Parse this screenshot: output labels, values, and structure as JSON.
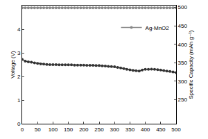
{
  "chart_data": {
    "type": "line",
    "xlim": [
      0,
      500
    ],
    "xticks": [
      0,
      50,
      100,
      150,
      200,
      250,
      300,
      350,
      400,
      450,
      500
    ],
    "ylabel": "Voltage (V)",
    "ylim": [
      0,
      5
    ],
    "yticks": [
      0,
      1,
      2,
      3,
      4
    ],
    "y2label": "Specific Capacity (mAh g⁻¹)",
    "y2lim": [
      185,
      505
    ],
    "y2ticks": [
      250,
      300,
      350,
      400,
      450,
      500
    ],
    "legend": "upper right",
    "grid": false,
    "x": [
      0,
      10,
      20,
      30,
      40,
      50,
      60,
      70,
      80,
      90,
      100,
      110,
      120,
      130,
      140,
      150,
      160,
      170,
      180,
      190,
      200,
      210,
      220,
      230,
      240,
      250,
      260,
      270,
      280,
      290,
      300,
      310,
      320,
      330,
      340,
      350,
      360,
      370,
      380,
      390,
      400,
      410,
      420,
      430,
      440,
      450,
      460,
      470,
      480,
      490,
      500
    ],
    "series": [
      {
        "color": "#333333",
        "marker": "circle",
        "axis": "y",
        "values": [
          2.72,
          2.65,
          2.62,
          2.6,
          2.57,
          2.55,
          2.53,
          2.52,
          2.51,
          2.5,
          2.5,
          2.5,
          2.49,
          2.49,
          2.49,
          2.49,
          2.49,
          2.48,
          2.48,
          2.48,
          2.48,
          2.47,
          2.47,
          2.47,
          2.46,
          2.46,
          2.45,
          2.44,
          2.43,
          2.42,
          2.41,
          2.38,
          2.36,
          2.33,
          2.3,
          2.28,
          2.26,
          2.24,
          2.23,
          2.27,
          2.3,
          2.3,
          2.31,
          2.3,
          2.29,
          2.27,
          2.25,
          2.23,
          2.21,
          2.19,
          2.16
        ]
      },
      {
        "name": "Ag-MnO2",
        "color": "#888888",
        "marker": "circle",
        "axis": "y2",
        "values": [
          499,
          499,
          499,
          499,
          499,
          499,
          499,
          499,
          499,
          499,
          499,
          499,
          499,
          499,
          499,
          499,
          499,
          499,
          499,
          499,
          499,
          499,
          499,
          499,
          499,
          499,
          499,
          499,
          499,
          499,
          499,
          499,
          499,
          499,
          499,
          499,
          499,
          499,
          499,
          499,
          499,
          499,
          499,
          499,
          499,
          499,
          499,
          499,
          499,
          499,
          499
        ]
      }
    ]
  }
}
